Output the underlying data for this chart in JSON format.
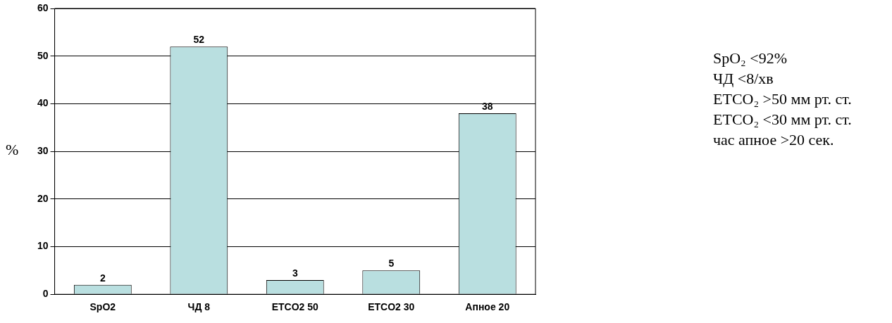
{
  "chart_data": {
    "type": "bar",
    "ylabel": "%",
    "categories": [
      "SpO2",
      "ЧД 8",
      "ETCO2 50",
      "ETCO2 30",
      "Апное 20"
    ],
    "values": [
      2,
      52,
      3,
      5,
      38
    ],
    "color": "#b9dfe0",
    "ylim": [
      0,
      60
    ],
    "yticks": [
      0,
      10,
      20,
      30,
      40,
      50,
      60
    ],
    "grid": "y",
    "data_labels": true,
    "legend": false,
    "annotations": [
      "SpO₂ <92%",
      "ЧД <8/хв",
      "ETCO₂ >50 мм рт. ст.",
      "ETCO₂ <30 мм рт. ст.",
      "час апное >20 сек."
    ]
  }
}
